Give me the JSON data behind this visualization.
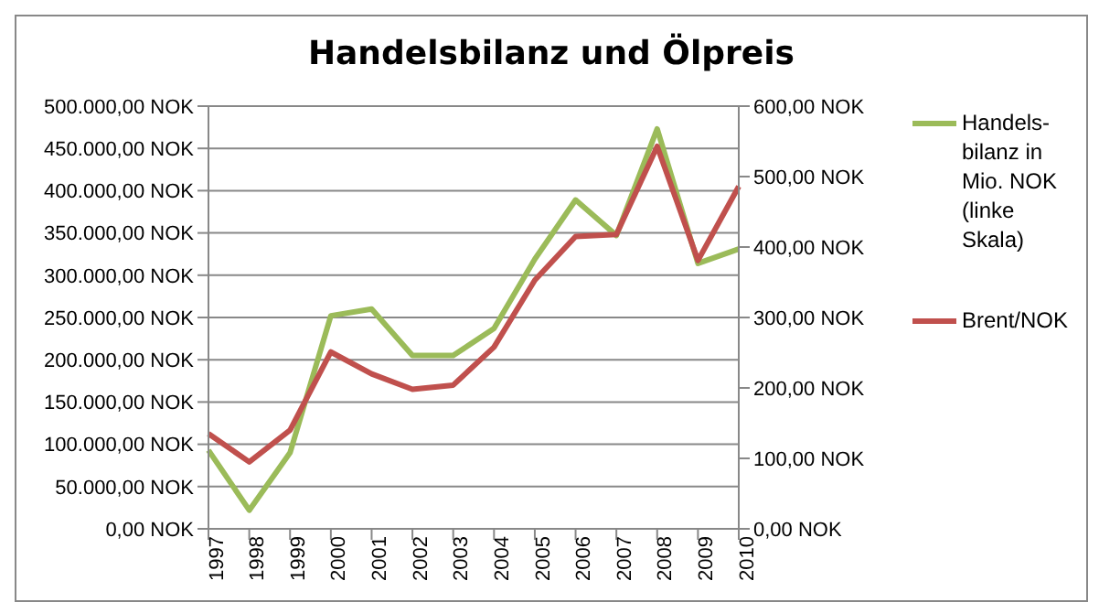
{
  "chart_data": {
    "type": "line",
    "title": "Handelsbilanz und Ölpreis",
    "categories": [
      "1997",
      "1998",
      "1999",
      "2000",
      "2001",
      "2002",
      "2003",
      "2004",
      "2005",
      "2006",
      "2007",
      "2008",
      "2009",
      "2010"
    ],
    "series": [
      {
        "name": "Handels-bilanz in Mio. NOK (linke Skala)",
        "color": "#9bbb59",
        "values": [
          93000,
          22000,
          90000,
          252000,
          260000,
          205000,
          205000,
          237000,
          319000,
          389000,
          347000,
          473000,
          314000,
          331000
        ]
      },
      {
        "name": "Brent/NOK",
        "color": "#c0504d",
        "axis": "y2",
        "values": [
          135,
          95,
          140,
          251,
          220,
          198,
          204,
          258,
          353,
          415,
          418,
          543,
          381,
          486
        ]
      }
    ],
    "ylim": [
      0,
      500000
    ],
    "yticks": [
      {
        "value": 0,
        "label": "0,00 NOK"
      },
      {
        "value": 50000,
        "label": "50.000,00 NOK"
      },
      {
        "value": 100000,
        "label": "100.000,00 NOK"
      },
      {
        "value": 150000,
        "label": "150.000,00 NOK"
      },
      {
        "value": 200000,
        "label": "200.000,00 NOK"
      },
      {
        "value": 250000,
        "label": "250.000,00 NOK"
      },
      {
        "value": 300000,
        "label": "300.000,00 NOK"
      },
      {
        "value": 350000,
        "label": "350.000,00 NOK"
      },
      {
        "value": 400000,
        "label": "400.000,00 NOK"
      },
      {
        "value": 450000,
        "label": "450.000,00 NOK"
      },
      {
        "value": 500000,
        "label": "500.000,00 NOK"
      }
    ],
    "y2lim": [
      0,
      600
    ],
    "y2ticks": [
      {
        "value": 0,
        "label": "0,00 NOK"
      },
      {
        "value": 100,
        "label": "100,00 NOK"
      },
      {
        "value": 200,
        "label": "200,00 NOK"
      },
      {
        "value": 300,
        "label": "300,00 NOK"
      },
      {
        "value": 400,
        "label": "400,00 NOK"
      },
      {
        "value": 500,
        "label": "500,00 NOK"
      },
      {
        "value": 600,
        "label": "600,00 NOK"
      }
    ],
    "grid": "y",
    "legend": "right",
    "marker": "none",
    "line_style": "solid"
  }
}
